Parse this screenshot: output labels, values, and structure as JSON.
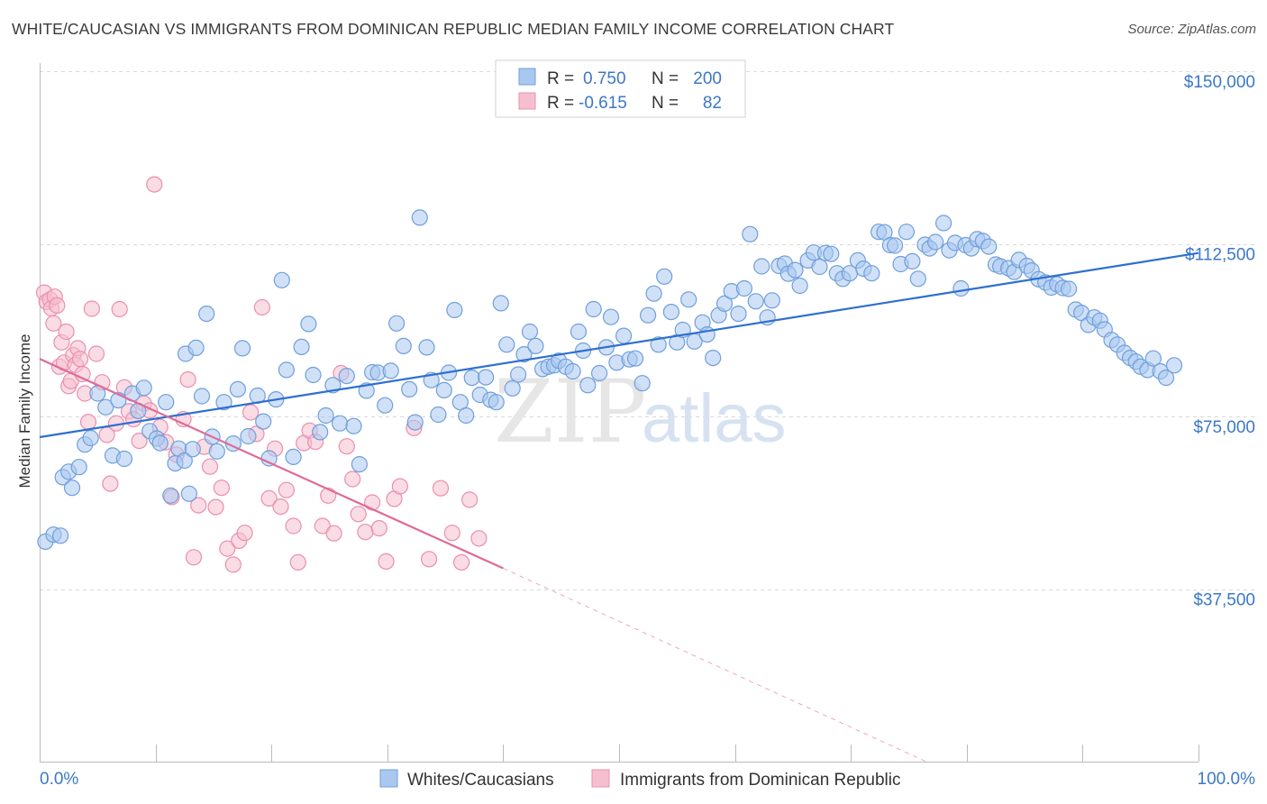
{
  "title": "WHITE/CAUCASIAN VS IMMIGRANTS FROM DOMINICAN REPUBLIC MEDIAN FAMILY INCOME CORRELATION CHART",
  "source": "Source: ZipAtlas.com",
  "watermark": {
    "zip": "ZIP",
    "atlas": "atlas"
  },
  "legend": {
    "r_label": "R =",
    "n_label": "N =",
    "blue": {
      "r": "0.750",
      "n": "200"
    },
    "pink": {
      "r": "-0.615",
      "n": "82"
    }
  },
  "colors": {
    "blue_fill": "#a9c8f0",
    "blue_stroke": "#6f9fdb",
    "blue_line": "#2e6fd0",
    "pink_fill": "#f6bfd0",
    "pink_stroke": "#ea8fae",
    "pink_line": "#e06a98",
    "grid": "#d9d9d9",
    "tick_label": "#3b78c8"
  },
  "chart_data": {
    "type": "scatter",
    "title": "WHITE/CAUCASIAN VS IMMIGRANTS FROM DOMINICAN REPUBLIC MEDIAN FAMILY INCOME CORRELATION CHART",
    "xlabel": "",
    "ylabel": "Median Family Income",
    "xlim": [
      0,
      100
    ],
    "ylim": [
      0,
      155000
    ],
    "x_tick_labels": [
      "0.0%",
      "100.0%"
    ],
    "y_ticks": [
      37500,
      75000,
      112500,
      150000
    ],
    "y_tick_labels": [
      "$37,500",
      "$75,000",
      "$112,500",
      "$150,000"
    ],
    "series": [
      {
        "name": "Whites/Caucasians",
        "color": "#a9c8f0",
        "trend": {
          "x": [
            0,
            100
          ],
          "y": [
            70500,
            110500
          ]
        },
        "points": [
          [
            0.5,
            47800
          ],
          [
            1.2,
            49300
          ],
          [
            1.8,
            49100
          ],
          [
            2,
            61800
          ],
          [
            2.5,
            63000
          ],
          [
            2.8,
            59500
          ],
          [
            3.4,
            64000
          ],
          [
            3.9,
            68900
          ],
          [
            4.4,
            70300
          ],
          [
            5,
            80000
          ],
          [
            5.7,
            77000
          ],
          [
            6.3,
            66500
          ],
          [
            6.8,
            78500
          ],
          [
            7.3,
            65800
          ],
          [
            8,
            80000
          ],
          [
            8.5,
            76200
          ],
          [
            9,
            81200
          ],
          [
            9.5,
            71800
          ],
          [
            10.1,
            70200
          ],
          [
            10.4,
            69200
          ],
          [
            10.9,
            78100
          ],
          [
            11.3,
            57800
          ],
          [
            11.7,
            64800
          ],
          [
            12,
            68000
          ],
          [
            12.5,
            65400
          ],
          [
            12.6,
            88600
          ],
          [
            12.9,
            58200
          ],
          [
            13.2,
            67900
          ],
          [
            13.5,
            89900
          ],
          [
            14,
            79400
          ],
          [
            14.4,
            97300
          ],
          [
            14.9,
            70600
          ],
          [
            15.3,
            67400
          ],
          [
            15.9,
            78100
          ],
          [
            16.7,
            69100
          ],
          [
            17.1,
            80900
          ],
          [
            17.5,
            89800
          ],
          [
            18,
            70700
          ],
          [
            18.8,
            79500
          ],
          [
            19.3,
            73900
          ],
          [
            19.8,
            65900
          ],
          [
            20.4,
            78700
          ],
          [
            20.9,
            104600
          ],
          [
            21.3,
            85100
          ],
          [
            21.9,
            66200
          ],
          [
            22.6,
            90100
          ],
          [
            23.2,
            95100
          ],
          [
            23.6,
            84000
          ],
          [
            24.2,
            71600
          ],
          [
            24.7,
            75200
          ],
          [
            25.3,
            81800
          ],
          [
            25.9,
            73500
          ],
          [
            26.5,
            83800
          ],
          [
            27.1,
            72900
          ],
          [
            27.6,
            64600
          ],
          [
            28.2,
            80600
          ],
          [
            28.7,
            84600
          ],
          [
            29.2,
            84500
          ],
          [
            29.8,
            77400
          ],
          [
            30.3,
            84900
          ],
          [
            30.8,
            95200
          ],
          [
            31.4,
            90300
          ],
          [
            31.9,
            80900
          ],
          [
            32.4,
            73700
          ],
          [
            32.8,
            118200
          ],
          [
            33.4,
            90000
          ],
          [
            33.8,
            82900
          ],
          [
            34.4,
            75400
          ],
          [
            34.9,
            80700
          ],
          [
            35.3,
            84500
          ],
          [
            35.8,
            98100
          ],
          [
            36.3,
            78100
          ],
          [
            36.8,
            75200
          ],
          [
            37.3,
            83400
          ],
          [
            38,
            79700
          ],
          [
            38.5,
            83500
          ],
          [
            38.9,
            78600
          ],
          [
            39.4,
            78100
          ],
          [
            39.8,
            99600
          ],
          [
            40.3,
            90600
          ],
          [
            40.8,
            81100
          ],
          [
            41.3,
            84100
          ],
          [
            41.8,
            88500
          ],
          [
            42.3,
            93400
          ],
          [
            42.8,
            90300
          ],
          [
            43.4,
            85300
          ],
          [
            43.9,
            85800
          ],
          [
            44.4,
            86100
          ],
          [
            44.8,
            87100
          ],
          [
            45.4,
            85800
          ],
          [
            46,
            84800
          ],
          [
            46.5,
            93400
          ],
          [
            46.9,
            89300
          ],
          [
            47.3,
            81800
          ],
          [
            47.8,
            98300
          ],
          [
            48.3,
            84400
          ],
          [
            48.9,
            90000
          ],
          [
            49.3,
            96600
          ],
          [
            49.8,
            86700
          ],
          [
            50.4,
            92500
          ],
          [
            50.9,
            87400
          ],
          [
            51.4,
            87600
          ],
          [
            52,
            82200
          ],
          [
            52.5,
            97000
          ],
          [
            53,
            101700
          ],
          [
            53.4,
            90600
          ],
          [
            53.9,
            105400
          ],
          [
            54.5,
            97700
          ],
          [
            55,
            91100
          ],
          [
            55.5,
            93800
          ],
          [
            56,
            100400
          ],
          [
            56.5,
            91300
          ],
          [
            57.2,
            95400
          ],
          [
            57.6,
            92800
          ],
          [
            58.1,
            87700
          ],
          [
            58.6,
            97000
          ],
          [
            59.1,
            99500
          ],
          [
            59.7,
            102200
          ],
          [
            60.3,
            97300
          ],
          [
            60.8,
            102800
          ],
          [
            61.3,
            114600
          ],
          [
            61.8,
            100000
          ],
          [
            62.3,
            107600
          ],
          [
            62.8,
            96500
          ],
          [
            63.2,
            100200
          ],
          [
            63.8,
            107700
          ],
          [
            64.3,
            108200
          ],
          [
            64.6,
            106000
          ],
          [
            65.2,
            106800
          ],
          [
            65.6,
            103400
          ],
          [
            66.3,
            108900
          ],
          [
            66.8,
            110600
          ],
          [
            67.3,
            107500
          ],
          [
            67.8,
            110500
          ],
          [
            68.3,
            110300
          ],
          [
            68.8,
            106100
          ],
          [
            69.3,
            104900
          ],
          [
            69.9,
            106100
          ],
          [
            70.6,
            108900
          ],
          [
            71.1,
            107100
          ],
          [
            71.8,
            106100
          ],
          [
            72.4,
            115100
          ],
          [
            72.9,
            115000
          ],
          [
            73.4,
            112200
          ],
          [
            73.8,
            112100
          ],
          [
            74.3,
            108100
          ],
          [
            74.8,
            115100
          ],
          [
            75.3,
            108700
          ],
          [
            75.8,
            104900
          ],
          [
            76.4,
            112300
          ],
          [
            76.8,
            111500
          ],
          [
            77.3,
            112900
          ],
          [
            78,
            117000
          ],
          [
            78.5,
            111100
          ],
          [
            79,
            112700
          ],
          [
            79.5,
            102800
          ],
          [
            79.9,
            112200
          ],
          [
            80.4,
            111500
          ],
          [
            80.9,
            113500
          ],
          [
            81.4,
            113100
          ],
          [
            81.9,
            111900
          ],
          [
            82.5,
            108000
          ],
          [
            82.9,
            107600
          ],
          [
            83.6,
            107200
          ],
          [
            84.1,
            106400
          ],
          [
            84.5,
            109000
          ],
          [
            85.2,
            107700
          ],
          [
            85.6,
            106700
          ],
          [
            86.2,
            104800
          ],
          [
            86.8,
            104100
          ],
          [
            87.3,
            103000
          ],
          [
            87.8,
            103700
          ],
          [
            88.3,
            102900
          ],
          [
            88.8,
            102700
          ],
          [
            89.4,
            98200
          ],
          [
            89.9,
            97500
          ],
          [
            90.5,
            94900
          ],
          [
            91,
            96500
          ],
          [
            91.5,
            95800
          ],
          [
            91.9,
            93900
          ],
          [
            92.5,
            91600
          ],
          [
            93,
            90600
          ],
          [
            93.6,
            88800
          ],
          [
            94.1,
            87700
          ],
          [
            94.6,
            86900
          ],
          [
            95,
            85800
          ],
          [
            95.6,
            85100
          ],
          [
            96.1,
            87600
          ],
          [
            96.7,
            84800
          ],
          [
            97.2,
            83400
          ],
          [
            97.9,
            86100
          ]
        ]
      },
      {
        "name": "Immigrants from Dominican Republic",
        "color": "#f6bfd0",
        "trend": {
          "x": [
            0,
            40
          ],
          "y": [
            87500,
            42000
          ]
        },
        "trend_extension": {
          "x": [
            40,
            76.5
          ],
          "y": [
            42000,
            0
          ]
        },
        "points": [
          [
            0.4,
            101900
          ],
          [
            0.6,
            99900
          ],
          [
            0.9,
            100400
          ],
          [
            1,
            98500
          ],
          [
            1.2,
            95200
          ],
          [
            1.3,
            101000
          ],
          [
            1.5,
            99100
          ],
          [
            1.7,
            85800
          ],
          [
            1.9,
            91100
          ],
          [
            2.1,
            86700
          ],
          [
            2.3,
            93400
          ],
          [
            2.5,
            81600
          ],
          [
            2.7,
            82700
          ],
          [
            2.9,
            88300
          ],
          [
            3.1,
            86200
          ],
          [
            3.3,
            89800
          ],
          [
            3.5,
            87500
          ],
          [
            3.7,
            84200
          ],
          [
            3.9,
            80000
          ],
          [
            4.2,
            73800
          ],
          [
            4.5,
            98400
          ],
          [
            4.9,
            88600
          ],
          [
            5.4,
            82400
          ],
          [
            5.8,
            71000
          ],
          [
            6.1,
            60400
          ],
          [
            6.6,
            73500
          ],
          [
            6.9,
            98300
          ],
          [
            7.3,
            81300
          ],
          [
            7.7,
            76100
          ],
          [
            8.1,
            74400
          ],
          [
            8.6,
            69700
          ],
          [
            9,
            77800
          ],
          [
            9.5,
            76300
          ],
          [
            9.9,
            125400
          ],
          [
            10.4,
            72700
          ],
          [
            10.9,
            69400
          ],
          [
            11.4,
            57500
          ],
          [
            11.8,
            66700
          ],
          [
            12.4,
            74400
          ],
          [
            12.8,
            83000
          ],
          [
            13.3,
            44400
          ],
          [
            13.7,
            55700
          ],
          [
            14.2,
            68400
          ],
          [
            14.7,
            64100
          ],
          [
            15.2,
            55300
          ],
          [
            15.7,
            59500
          ],
          [
            16.2,
            46300
          ],
          [
            16.7,
            42800
          ],
          [
            17.2,
            48000
          ],
          [
            17.7,
            49700
          ],
          [
            18.2,
            75900
          ],
          [
            18.7,
            71200
          ],
          [
            19.2,
            98700
          ],
          [
            19.8,
            57200
          ],
          [
            20.3,
            68000
          ],
          [
            20.8,
            55400
          ],
          [
            21.3,
            59000
          ],
          [
            21.9,
            51200
          ],
          [
            22.3,
            43300
          ],
          [
            22.8,
            69200
          ],
          [
            23.3,
            71900
          ],
          [
            23.8,
            69500
          ],
          [
            24.4,
            51200
          ],
          [
            24.9,
            57800
          ],
          [
            25.4,
            49600
          ],
          [
            26,
            84400
          ],
          [
            26.5,
            68500
          ],
          [
            27,
            61400
          ],
          [
            27.5,
            53800
          ],
          [
            28.1,
            49900
          ],
          [
            28.7,
            56300
          ],
          [
            29.3,
            50700
          ],
          [
            29.9,
            43500
          ],
          [
            30.6,
            57100
          ],
          [
            31.1,
            59800
          ],
          [
            32.3,
            72500
          ],
          [
            33.6,
            44000
          ],
          [
            34.6,
            59400
          ],
          [
            35.6,
            49700
          ],
          [
            36.4,
            43300
          ],
          [
            37.1,
            56900
          ],
          [
            37.9,
            48500
          ]
        ]
      }
    ]
  },
  "bottom_legend": {
    "blue": "Whites/Caucasians",
    "pink": "Immigrants from Dominican Republic"
  }
}
